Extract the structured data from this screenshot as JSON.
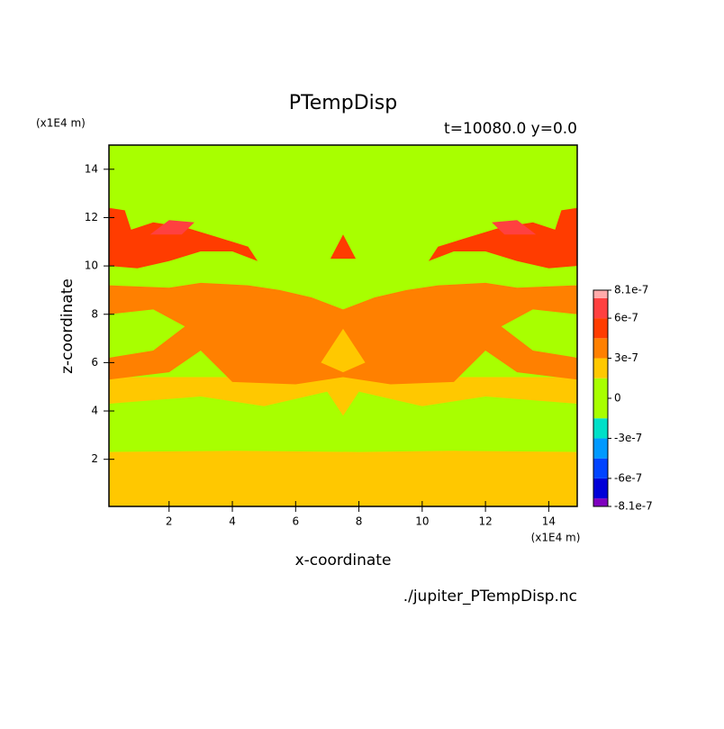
{
  "chart_data": {
    "type": "contour",
    "title": "PTempDisp",
    "subtitle": "t=10080.0 y=0.0",
    "xlabel": "x-coordinate",
    "ylabel": "z-coordinate",
    "x_unit": "(x1E4 m)",
    "y_unit": "(x1E4 m)",
    "source": "./jupiter_PTempDisp.nc",
    "xlim": [
      0.1,
      14.9
    ],
    "ylim": [
      0.05,
      15
    ],
    "xticks": [
      2,
      4,
      6,
      8,
      10,
      12,
      14
    ],
    "yticks": [
      2,
      4,
      6,
      8,
      10,
      12,
      14
    ],
    "levels": [
      -8.1e-07,
      -7.5e-07,
      -6e-07,
      -4.5e-07,
      -3e-07,
      -1.5e-07,
      1.5e-07,
      3e-07,
      4.5e-07,
      6e-07,
      7.5e-07,
      8.1e-07
    ],
    "colors": [
      "#7f00bf",
      "#0000d8",
      "#0044ff",
      "#0099ff",
      "#00e0c8",
      "#a8ff00",
      "#ffc800",
      "#ff8000",
      "#ff3c00",
      "#ff4040",
      "#ffaaaa"
    ],
    "colorbar_ticks": [
      {
        "value": 8.1e-07,
        "label": "8.1e-7"
      },
      {
        "value": 6e-07,
        "label": "6e-7"
      },
      {
        "value": 3e-07,
        "label": "3e-7"
      },
      0,
      {
        "value": -3e-07,
        "label": "-3e-7"
      },
      {
        "value": -6e-07,
        "label": "-6e-7"
      },
      {
        "value": -8.1e-07,
        "label": "-8.1e-7"
      }
    ],
    "regions": [
      {
        "band": 5,
        "points": [
          [
            0.1,
            0.05
          ],
          [
            14.9,
            0.05
          ],
          [
            14.9,
            15
          ],
          [
            0.1,
            15
          ]
        ]
      },
      {
        "band": 6,
        "points": [
          [
            0.1,
            0.05
          ],
          [
            14.9,
            0.05
          ],
          [
            14.9,
            2.3
          ],
          [
            11,
            2.35
          ],
          [
            8,
            2.3
          ],
          [
            4,
            2.35
          ],
          [
            0.1,
            2.3
          ]
        ]
      },
      {
        "band": 6,
        "points": [
          [
            0.1,
            4.3
          ],
          [
            3,
            4.6
          ],
          [
            5,
            4.2
          ],
          [
            7,
            4.8
          ],
          [
            7.5,
            3.8
          ],
          [
            8,
            4.8
          ],
          [
            10,
            4.2
          ],
          [
            12,
            4.6
          ],
          [
            14.9,
            4.3
          ],
          [
            14.9,
            5.4
          ],
          [
            0.1,
            5.4
          ]
        ]
      },
      {
        "band": 7,
        "points": [
          [
            0.1,
            5.3
          ],
          [
            0.1,
            9.2
          ],
          [
            2,
            9.1
          ],
          [
            3,
            9.3
          ],
          [
            4.5,
            9.2
          ],
          [
            5.5,
            9.0
          ],
          [
            6.5,
            8.7
          ],
          [
            7.5,
            8.2
          ],
          [
            8.5,
            8.7
          ],
          [
            9.5,
            9.0
          ],
          [
            10.5,
            9.2
          ],
          [
            12,
            9.3
          ],
          [
            13,
            9.1
          ],
          [
            14.9,
            9.2
          ],
          [
            14.9,
            5.3
          ],
          [
            13,
            5.6
          ],
          [
            12,
            6.5
          ],
          [
            11,
            5.2
          ],
          [
            9,
            5.1
          ],
          [
            7.5,
            5.4
          ],
          [
            6,
            5.1
          ],
          [
            4,
            5.2
          ],
          [
            3,
            6.5
          ],
          [
            2,
            5.6
          ]
        ]
      },
      {
        "band": 5,
        "points": [
          [
            0.1,
            6.2
          ],
          [
            1.5,
            6.5
          ],
          [
            2.5,
            7.5
          ],
          [
            1.5,
            8.2
          ],
          [
            0.1,
            8.0
          ]
        ]
      },
      {
        "band": 5,
        "points": [
          [
            14.9,
            6.2
          ],
          [
            13.5,
            6.5
          ],
          [
            12.5,
            7.5
          ],
          [
            13.5,
            8.2
          ],
          [
            14.9,
            8.0
          ]
        ]
      },
      {
        "band": 6,
        "points": [
          [
            6.8,
            6.0
          ],
          [
            7.5,
            7.4
          ],
          [
            8.2,
            6.0
          ],
          [
            7.5,
            5.6
          ]
        ]
      },
      {
        "band": 8,
        "points": [
          [
            0.1,
            10.0
          ],
          [
            0.1,
            12.4
          ],
          [
            0.6,
            12.3
          ],
          [
            0.8,
            11.5
          ],
          [
            1.5,
            11.8
          ],
          [
            2.5,
            11.6
          ],
          [
            3.5,
            11.2
          ],
          [
            4.5,
            10.8
          ],
          [
            4.8,
            10.2
          ],
          [
            4,
            10.6
          ],
          [
            3,
            10.6
          ],
          [
            2,
            10.2
          ],
          [
            1,
            9.9
          ]
        ]
      },
      {
        "band": 8,
        "points": [
          [
            14.9,
            10.0
          ],
          [
            14.9,
            12.4
          ],
          [
            14.4,
            12.3
          ],
          [
            14.2,
            11.5
          ],
          [
            13.5,
            11.8
          ],
          [
            12.5,
            11.6
          ],
          [
            11.5,
            11.2
          ],
          [
            10.5,
            10.8
          ],
          [
            10.2,
            10.2
          ],
          [
            11,
            10.6
          ],
          [
            12,
            10.6
          ],
          [
            13,
            10.2
          ],
          [
            14,
            9.9
          ]
        ]
      },
      {
        "band": 9,
        "points": [
          [
            1.4,
            11.3
          ],
          [
            2,
            11.9
          ],
          [
            2.8,
            11.8
          ],
          [
            2.4,
            11.3
          ]
        ]
      },
      {
        "band": 9,
        "points": [
          [
            13.6,
            11.3
          ],
          [
            13,
            11.9
          ],
          [
            12.2,
            11.8
          ],
          [
            12.6,
            11.3
          ]
        ]
      },
      {
        "band": 8,
        "points": [
          [
            7.1,
            10.3
          ],
          [
            7.5,
            11.3
          ],
          [
            7.9,
            10.3
          ]
        ]
      }
    ]
  }
}
